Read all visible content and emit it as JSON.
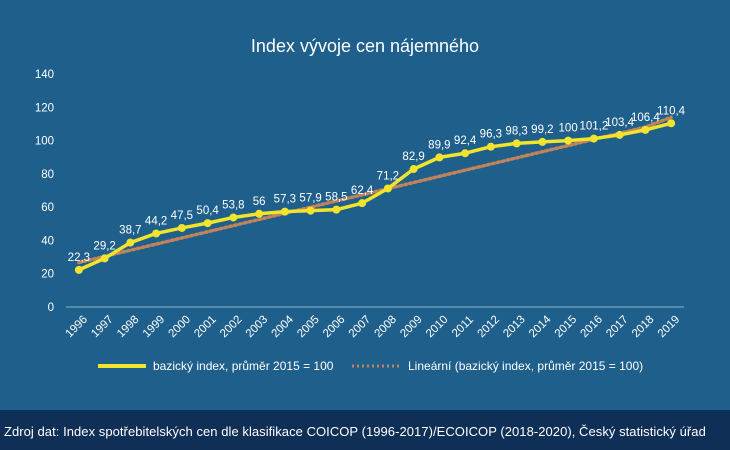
{
  "colors": {
    "background": "#1e5f8c",
    "footer_background": "#0f2f57",
    "series_line": "#f2e32c",
    "trend_line": "#c0835a",
    "text": "#ffffff"
  },
  "chart_data": {
    "type": "line",
    "title": "Index vývoje cen nájemného",
    "xlabel": "",
    "ylabel": "",
    "ylim": [
      0,
      140
    ],
    "yticks": [
      "0",
      "20",
      "40",
      "60",
      "80",
      "100",
      "120",
      "140"
    ],
    "grid": false,
    "legend_placement": "bottom",
    "categories": [
      "1996",
      "1997",
      "1998",
      "1999",
      "2000",
      "2001",
      "2002",
      "2003",
      "2004",
      "2005",
      "2006",
      "2007",
      "2008",
      "2009",
      "2010",
      "2011",
      "2012",
      "2013",
      "2014",
      "2015",
      "2016",
      "2017",
      "2018",
      "2019"
    ],
    "series": [
      {
        "name": "bazický index, průměr 2015 = 100",
        "style": "solid-with-markers",
        "values": [
          22.3,
          29.2,
          38.7,
          44.2,
          47.5,
          50.4,
          53.8,
          56,
          57.3,
          57.9,
          58.5,
          62.4,
          71.2,
          82.9,
          89.9,
          92.4,
          96.3,
          98.3,
          99.2,
          100,
          101.2,
          103.4,
          106.4,
          110.4
        ],
        "labels": [
          "22,3",
          "29,2",
          "38,7",
          "44,2",
          "47,5",
          "50,4",
          "53,8",
          "56",
          "57,3",
          "57,9",
          "58,5",
          "62,4",
          "71,2",
          "82,9",
          "89,9",
          "92,4",
          "96,3",
          "98,3",
          "99,2",
          "100",
          "101,2",
          "103,4",
          "106,4",
          "110,4"
        ]
      },
      {
        "name": "Lineární (bazický index, průměr 2015 = 100)",
        "style": "dotted-trendline",
        "values": [
          26.7,
          30.4,
          34.1,
          37.8,
          41.5,
          45.2,
          48.9,
          52.6,
          56.3,
          60.0,
          63.7,
          67.4,
          71.1,
          74.8,
          78.5,
          82.2,
          85.9,
          89.6,
          93.3,
          97.0,
          100.7,
          104.4,
          108.1,
          114.0
        ]
      }
    ]
  },
  "footer": {
    "source": "Zdroj dat: Index spotřebitelských cen dle klasifikace COICOP (1996-2017)/ECOICOP (2018-2020), Český statistický úřad"
  }
}
